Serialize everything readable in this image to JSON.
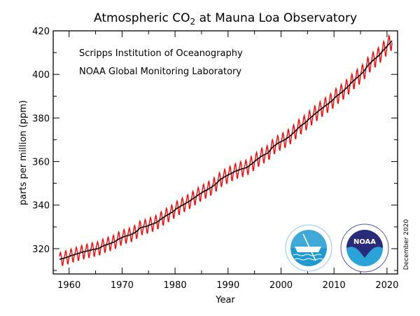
{
  "chart_data": {
    "type": "line",
    "title": "Atmospheric CO",
    "title_subscript": "2",
    "title_suffix": " at Mauna Loa Observatory",
    "xlabel": "Year",
    "ylabel": "parts per million (ppm)",
    "xlim": [
      1957,
      2022
    ],
    "ylim": [
      308.4,
      420
    ],
    "x_ticks": [
      1960,
      1970,
      1980,
      1990,
      2000,
      2010,
      2020
    ],
    "y_ticks": [
      320,
      340,
      360,
      380,
      400,
      420
    ],
    "grid": false,
    "annotations": [
      "Scripps Institution of Oceanography",
      "NOAA Global Monitoring Laboratory"
    ],
    "date_note": "December 2020",
    "logos": {
      "scripps": "UCSD",
      "noaa": "NOAA"
    },
    "colors": {
      "monthly": "#ff0000",
      "trend": "#000000",
      "noaa_dark": "#2a2a7a",
      "noaa_light": "#2aa3d8",
      "scripps": "#1e9ad0"
    },
    "series": [
      {
        "role": "monthly mean (annual means + seasonal cycle)",
        "color": "#ff0000"
      },
      {
        "role": "seasonally corrected trend",
        "color": "#000000"
      }
    ],
    "annual_means": {
      "years": [
        1958,
        1959,
        1960,
        1961,
        1962,
        1963,
        1964,
        1965,
        1966,
        1967,
        1968,
        1969,
        1970,
        1971,
        1972,
        1973,
        1974,
        1975,
        1976,
        1977,
        1978,
        1979,
        1980,
        1981,
        1982,
        1983,
        1984,
        1985,
        1986,
        1987,
        1988,
        1989,
        1990,
        1991,
        1992,
        1993,
        1994,
        1995,
        1996,
        1997,
        1998,
        1999,
        2000,
        2001,
        2002,
        2003,
        2004,
        2005,
        2006,
        2007,
        2008,
        2009,
        2010,
        2011,
        2012,
        2013,
        2014,
        2015,
        2016,
        2017,
        2018,
        2019,
        2020
      ],
      "ppm": [
        315.3,
        315.98,
        316.91,
        317.64,
        318.45,
        318.99,
        319.62,
        320.04,
        321.37,
        322.18,
        323.05,
        324.62,
        325.68,
        326.32,
        327.46,
        329.68,
        330.19,
        331.12,
        332.03,
        333.84,
        335.41,
        336.84,
        338.76,
        340.12,
        341.48,
        343.15,
        344.87,
        346.35,
        347.61,
        349.31,
        351.69,
        353.2,
        354.45,
        355.7,
        356.54,
        357.21,
        358.96,
        360.97,
        362.74,
        363.88,
        366.84,
        368.54,
        369.71,
        371.32,
        373.45,
        375.98,
        377.7,
        379.98,
        382.09,
        384.02,
        385.83,
        387.64,
        390.1,
        391.85,
        394.06,
        396.74,
        398.81,
        401.01,
        404.41,
        406.76,
        408.72,
        411.66,
        414.24
      ]
    },
    "seasonal_cycle_ppm": [
      0.0,
      0.65,
      1.4,
      2.6,
      3.1,
      2.4,
      0.9,
      -1.3,
      -3.0,
      -3.2,
      -1.9,
      -0.7
    ]
  }
}
